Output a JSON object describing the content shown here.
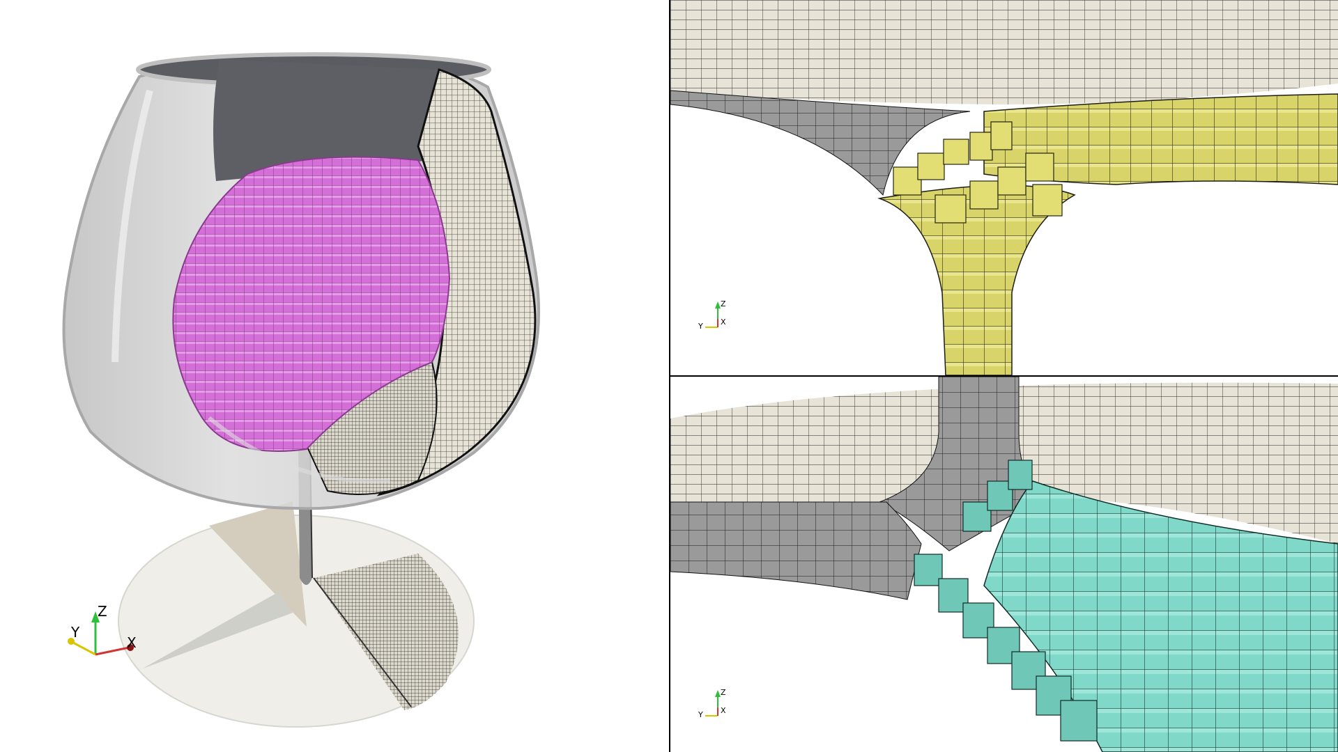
{
  "panels": {
    "left": {
      "description_key": "glass-overview",
      "colors": {
        "glass": "#c9c9c9",
        "glass_rim_dark": "#5a5b60",
        "liquid": "#d36fd6",
        "mesh": "#e7e3d6",
        "base": "#efeee8",
        "shadow": "#d8d2c3"
      }
    },
    "top_right": {
      "colors": {
        "mesh": "#e7e3d6",
        "cells": "#d8d46a",
        "shadow": "#8f8f8f"
      }
    },
    "bottom_right": {
      "colors": {
        "mesh": "#e7e3d6",
        "cells": "#7fd8c8",
        "shadow": "#8f8f8f"
      }
    }
  },
  "axes": {
    "main": {
      "z": "Z",
      "y": "Y",
      "x": "X"
    },
    "top_right": {
      "z": "Z",
      "y": "Y",
      "x": "X"
    },
    "bottom_right": {
      "z": "Z",
      "y": "Y",
      "x": "X"
    }
  }
}
